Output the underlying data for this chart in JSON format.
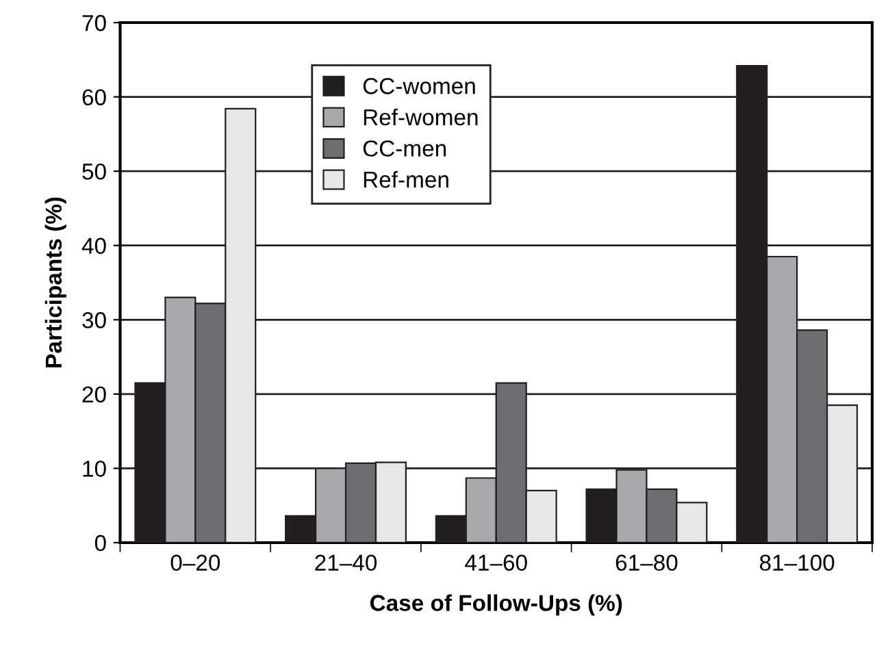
{
  "chart_data": {
    "type": "bar",
    "xlabel": "Case of Follow-Ups (%)",
    "ylabel": "Participants (%)",
    "categories": [
      "0–20",
      "21–40",
      "41–60",
      "61–80",
      "81–100"
    ],
    "series": [
      {
        "name": "CC-women",
        "color": "#231f20",
        "values": [
          21.5,
          3.6,
          3.6,
          7.2,
          64.2
        ]
      },
      {
        "name": "Ref-women",
        "color": "#a7a9ac",
        "values": [
          33.0,
          10.0,
          8.7,
          9.8,
          38.5
        ]
      },
      {
        "name": "CC-men",
        "color": "#6d6e71",
        "values": [
          32.2,
          10.7,
          21.5,
          7.2,
          28.6
        ]
      },
      {
        "name": "Ref-men",
        "color": "#e6e7e8",
        "values": [
          58.4,
          10.8,
          7.0,
          5.4,
          18.5
        ]
      }
    ],
    "ylim": [
      0,
      70
    ],
    "yticks": [
      0,
      10,
      20,
      30,
      40,
      50,
      60,
      70
    ],
    "grid": "y",
    "legend": "top left"
  }
}
